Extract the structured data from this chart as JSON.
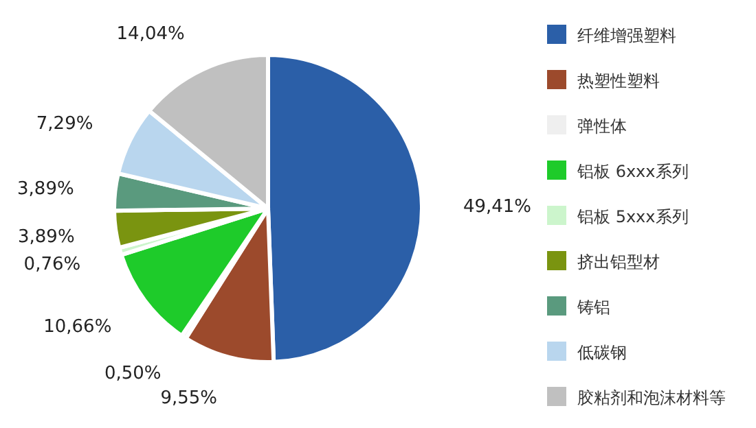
{
  "chart_data": {
    "type": "pie",
    "legend": "right",
    "categories": [
      "纤维增强塑料",
      "热塑性塑料",
      "弹性体",
      "铝板 6xxx系列",
      "铝板 5xxx系列",
      "挤出铝型材",
      "铸铝",
      "低碳钢",
      "胶粘剂和泡沫材料等"
    ],
    "values": [
      49.41,
      9.55,
      0.5,
      10.66,
      0.76,
      3.89,
      3.89,
      7.29,
      14.04
    ],
    "value_labels": [
      "49,41%",
      "9,55%",
      "0,50%",
      "10,66%",
      "0,76%",
      "3,89%",
      "3,89%",
      "7,29%",
      "14,04%"
    ],
    "colors": [
      "#2b5fa8",
      "#9c4a2c",
      "#efefef",
      "#1ecb2a",
      "#ccf5cc",
      "#7a9410",
      "#5a9a7e",
      "#b9d6ee",
      "#c0c0c0"
    ]
  }
}
